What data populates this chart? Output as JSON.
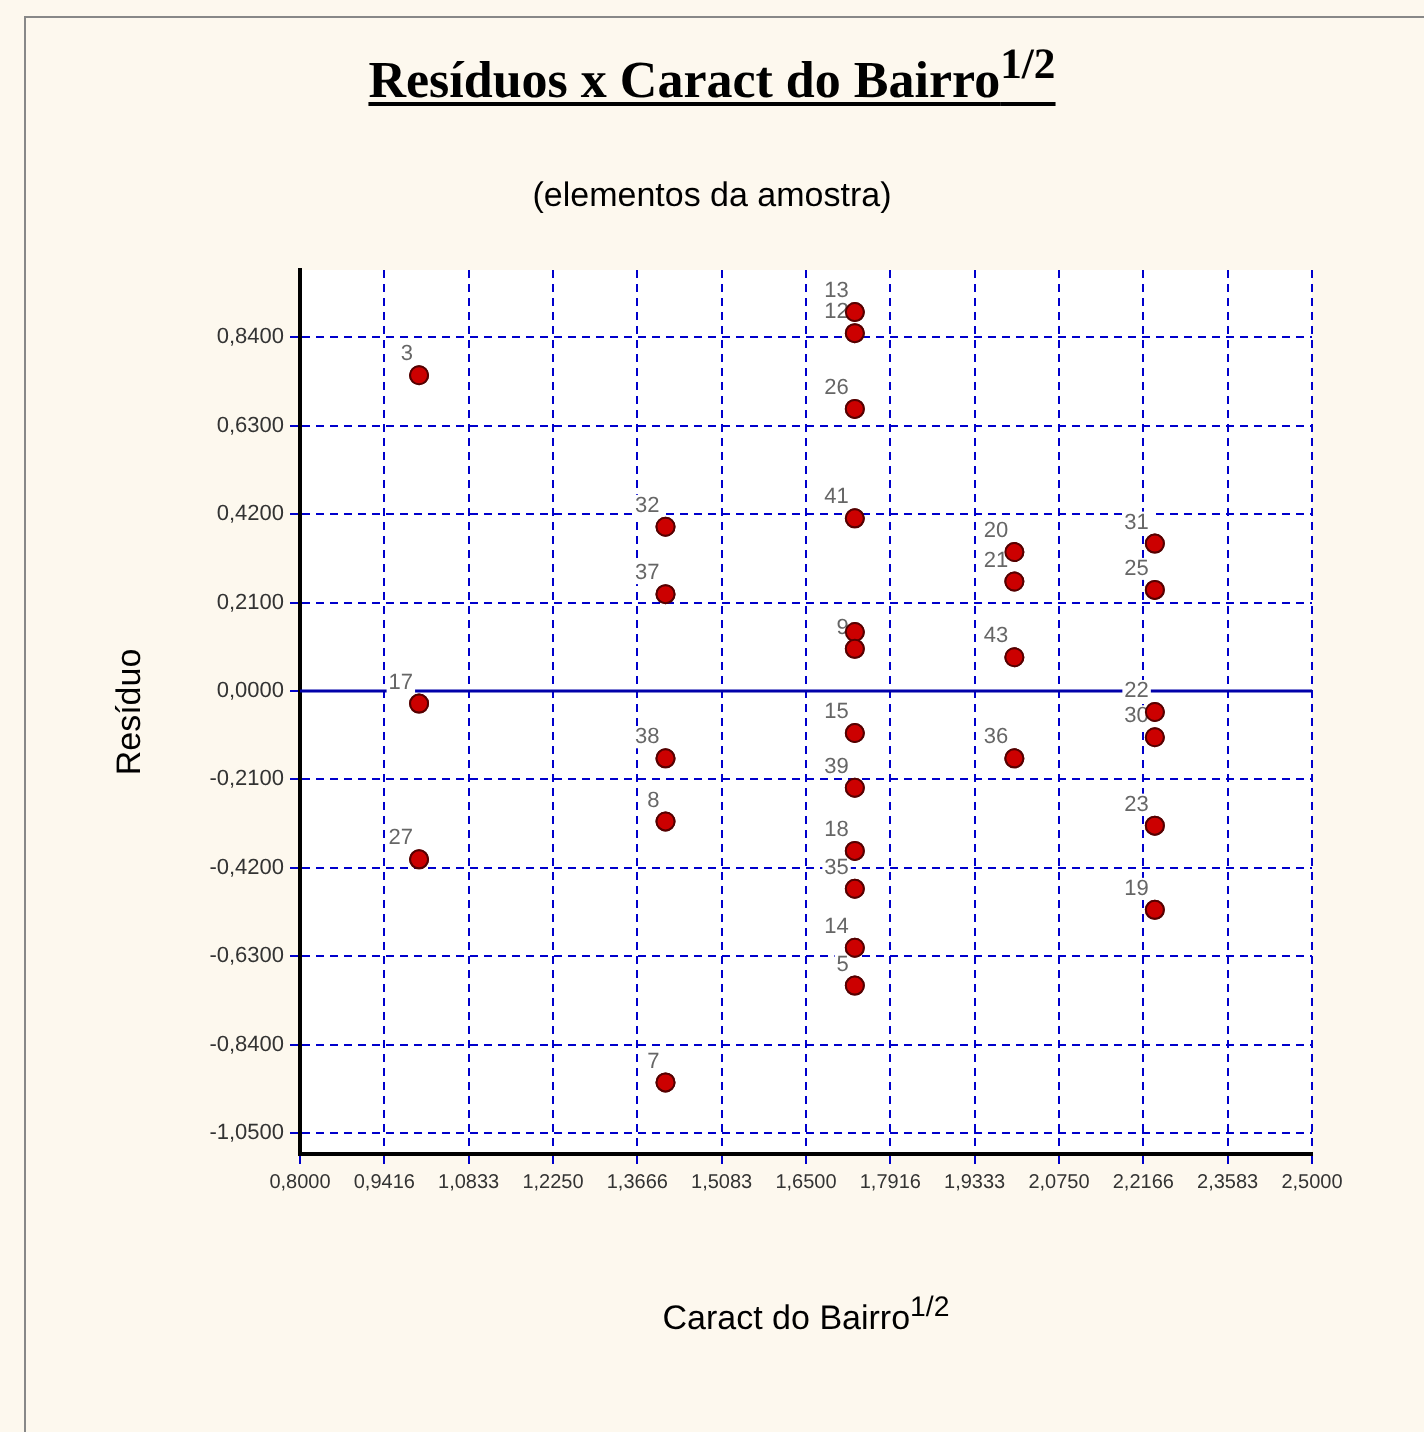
{
  "chart_data": {
    "type": "scatter",
    "title": "Resíduos x Caract do Bairro$^{1/2}$",
    "subtitle": "(elementos da amostra)",
    "xlabel": "Caract do Bairro$^{1/2}$",
    "ylabel": "Resíduo",
    "x": [
      1.0,
      1.0,
      1.0,
      1.414,
      1.414,
      1.414,
      1.414,
      1.414,
      1.732,
      1.732,
      1.732,
      1.732,
      1.732,
      1.732,
      1.732,
      1.732,
      1.732,
      1.732,
      1.732,
      1.732,
      2.0,
      2.0,
      2.0,
      2.0,
      2.236,
      2.236,
      2.236,
      2.236,
      2.236,
      2.236
    ],
    "values": [
      0.75,
      -0.03,
      -0.4,
      0.39,
      0.23,
      -0.16,
      -0.31,
      -0.93,
      0.9,
      0.85,
      0.67,
      0.41,
      0.14,
      0.1,
      -0.1,
      -0.23,
      -0.38,
      -0.47,
      -0.61,
      -0.7,
      0.33,
      0.26,
      0.08,
      -0.16,
      0.35,
      0.24,
      -0.05,
      -0.11,
      -0.32,
      -0.52
    ],
    "color": "#cc0000",
    "marker": "circle",
    "grid": true,
    "xlim": [
      0.8,
      2.5
    ],
    "ylim": [
      -1.1,
      1.0
    ],
    "xticks": [
      {
        "value": 0.8,
        "label": "0,8000"
      },
      {
        "value": 0.9416,
        "label": "0,9416"
      },
      {
        "value": 1.0833,
        "label": "1,0833"
      },
      {
        "value": 1.225,
        "label": "1,2250"
      },
      {
        "value": 1.3666,
        "label": "1,3666"
      },
      {
        "value": 1.5083,
        "label": "1,5083"
      },
      {
        "value": 1.65,
        "label": "1,6500"
      },
      {
        "value": 1.7916,
        "label": "1,7916"
      },
      {
        "value": 1.9333,
        "label": "1,9333"
      },
      {
        "value": 2.075,
        "label": "2,0750"
      },
      {
        "value": 2.2166,
        "label": "2,2166"
      },
      {
        "value": 2.3583,
        "label": "2,3583"
      },
      {
        "value": 2.5,
        "label": "2,5000"
      }
    ],
    "yticks": [
      {
        "value": 0.84,
        "label": "0,8400"
      },
      {
        "value": 0.63,
        "label": "0,6300"
      },
      {
        "value": 0.42,
        "label": "0,4200"
      },
      {
        "value": 0.21,
        "label": "0,2100"
      },
      {
        "value": 0,
        "label": "0,0000"
      },
      {
        "value": -0.21,
        "label": "-0,2100"
      },
      {
        "value": -0.42,
        "label": "-0,4200"
      },
      {
        "value": -0.63,
        "label": "-0,6300"
      },
      {
        "value": -0.84,
        "label": "-0,8400"
      },
      {
        "value": -1.05,
        "label": "-1,0500"
      }
    ],
    "ref_lines": [
      {
        "axis": "y",
        "value": 0,
        "color": "#0000aa"
      }
    ],
    "annotations": [
      {
        "text": "3",
        "x": 1.0,
        "y": 0.75
      },
      {
        "text": "17",
        "x": 1.0,
        "y": -0.03
      },
      {
        "text": "27",
        "x": 1.0,
        "y": -0.4
      },
      {
        "text": "32",
        "x": 1.414,
        "y": 0.39
      },
      {
        "text": "37",
        "x": 1.414,
        "y": 0.23
      },
      {
        "text": "38",
        "x": 1.414,
        "y": -0.16
      },
      {
        "text": "8",
        "x": 1.414,
        "y": -0.31
      },
      {
        "text": "7",
        "x": 1.414,
        "y": -0.93
      },
      {
        "text": "13",
        "x": 1.732,
        "y": 0.9
      },
      {
        "text": "12",
        "x": 1.732,
        "y": 0.85
      },
      {
        "text": "26",
        "x": 1.732,
        "y": 0.67
      },
      {
        "text": "41",
        "x": 1.732,
        "y": 0.41
      },
      {
        "text": "9",
        "x": 1.732,
        "y": 0.1
      },
      {
        "text": "15",
        "x": 1.732,
        "y": -0.1
      },
      {
        "text": "39",
        "x": 1.732,
        "y": -0.23
      },
      {
        "text": "18",
        "x": 1.732,
        "y": -0.38
      },
      {
        "text": "35",
        "x": 1.732,
        "y": -0.47
      },
      {
        "text": "14",
        "x": 1.732,
        "y": -0.61
      },
      {
        "text": "5",
        "x": 1.732,
        "y": -0.7
      },
      {
        "text": "20",
        "x": 2.0,
        "y": 0.33
      },
      {
        "text": "21",
        "x": 2.0,
        "y": 0.26
      },
      {
        "text": "43",
        "x": 2.0,
        "y": 0.08
      },
      {
        "text": "36",
        "x": 2.0,
        "y": -0.16
      },
      {
        "text": "31",
        "x": 2.236,
        "y": 0.35
      },
      {
        "text": "25",
        "x": 2.236,
        "y": 0.24
      },
      {
        "text": "22",
        "x": 2.236,
        "y": -0.05
      },
      {
        "text": "30",
        "x": 2.236,
        "y": -0.11
      },
      {
        "text": "23",
        "x": 2.236,
        "y": -0.32
      },
      {
        "text": "19",
        "x": 2.236,
        "y": -0.52
      }
    ]
  }
}
